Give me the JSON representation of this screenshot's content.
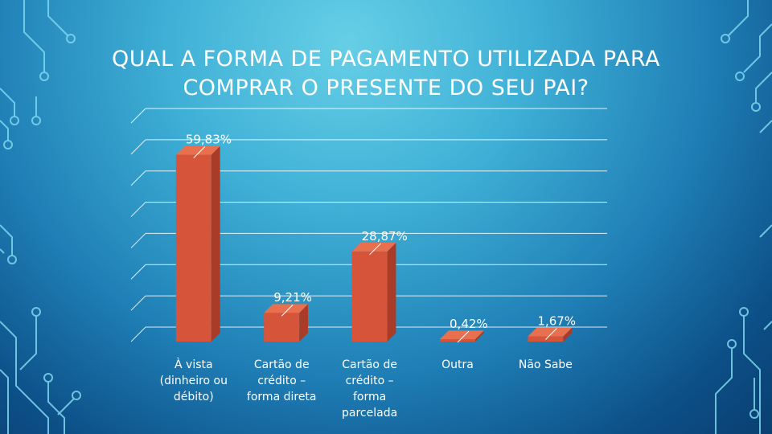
{
  "title_lines": [
    "QUAL A FORMA DE PAGAMENTO UTILIZADA PARA",
    "COMPRAR O PRESENTE DO SEU PAI?"
  ],
  "chart_data": {
    "type": "bar",
    "title": "QUAL A FORMA DE PAGAMENTO UTILIZADA PARA COMPRAR O PRESENTE DO SEU PAI?",
    "categories": [
      [
        "À vista",
        "(dinheiro ou",
        "débito)"
      ],
      [
        "Cartão de",
        "crédito –",
        "forma direta"
      ],
      [
        "Cartão de",
        "crédito –",
        "forma",
        "parcelada"
      ],
      [
        "Outra"
      ],
      [
        "Não Sabe"
      ]
    ],
    "values": [
      59.83,
      9.21,
      28.87,
      0.42,
      1.67
    ],
    "data_labels": [
      "59,83%",
      "9,21%",
      "28,87%",
      "0,42%",
      "1,67%"
    ],
    "ylim": [
      0,
      70
    ],
    "grid": true,
    "colors": {
      "bar_front": "#d6543a",
      "bar_side": "#a83c28",
      "bar_top": "#e8704f",
      "grid": "#ffffff",
      "text": "#ffffff"
    }
  }
}
